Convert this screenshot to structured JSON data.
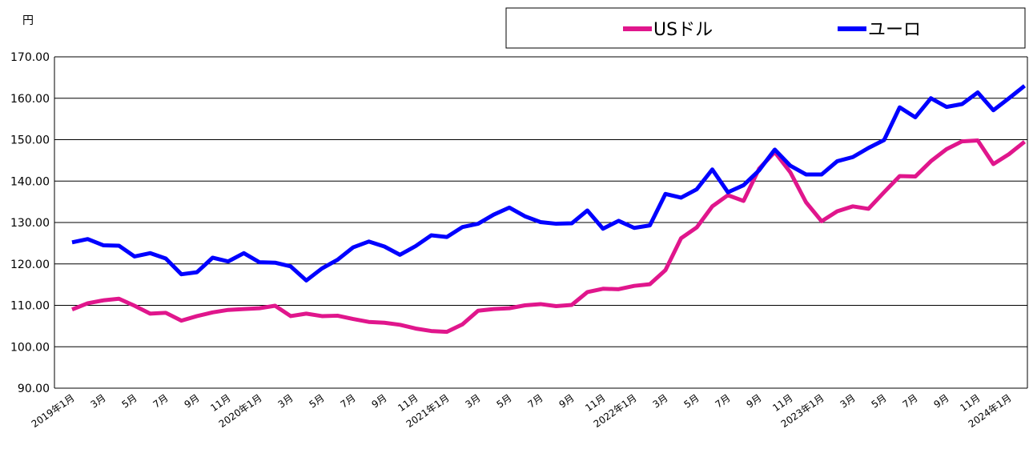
{
  "chart_data": {
    "type": "line",
    "y_label": "円",
    "categories": [
      "2019年1月",
      null,
      "3月",
      null,
      "5月",
      null,
      "7月",
      null,
      "9月",
      null,
      "11月",
      null,
      "2020年1月",
      null,
      "3月",
      null,
      "5月",
      null,
      "7月",
      null,
      "9月",
      null,
      "11月",
      null,
      "2021年1月",
      null,
      "3月",
      null,
      "5月",
      null,
      "7月",
      null,
      "9月",
      null,
      "11月",
      null,
      "2022年1月",
      null,
      "3月",
      null,
      "5月",
      null,
      "7月",
      null,
      "9月",
      null,
      "11月",
      null,
      "2023年1月",
      null,
      "3月",
      null,
      "5月",
      null,
      "7月",
      null,
      "9月",
      null,
      "11月",
      null,
      "2024年1月",
      null
    ],
    "series": [
      {
        "name": "USドル",
        "color": "#e0168c",
        "values": [
          109.0,
          110.5,
          111.2,
          111.6,
          109.9,
          108.0,
          108.2,
          106.3,
          107.4,
          108.3,
          108.9,
          109.1,
          109.3,
          109.9,
          107.4,
          108.0,
          107.4,
          107.5,
          106.7,
          106.0,
          105.8,
          105.3,
          104.4,
          103.8,
          103.6,
          105.4,
          108.7,
          109.1,
          109.3,
          110.0,
          110.3,
          109.8,
          110.1,
          113.2,
          114.0,
          113.9,
          114.7,
          115.1,
          118.5,
          126.2,
          128.8,
          133.9,
          136.6,
          135.2,
          143.0,
          147.0,
          142.1,
          134.9,
          130.3,
          132.7,
          133.9,
          133.3,
          137.3,
          141.2,
          141.1,
          144.8,
          147.7,
          149.6,
          149.8,
          144.1,
          146.5,
          149.5
        ]
      },
      {
        "name": "ユーロ",
        "color": "#0000ff",
        "values": [
          125.2,
          126.0,
          124.5,
          124.4,
          121.8,
          122.6,
          121.3,
          117.5,
          118.0,
          121.5,
          120.6,
          122.6,
          120.4,
          120.3,
          119.4,
          116.0,
          118.9,
          121.0,
          124.0,
          125.4,
          124.2,
          122.2,
          124.3,
          126.9,
          126.5,
          128.9,
          129.7,
          131.9,
          133.6,
          131.5,
          130.1,
          129.7,
          129.8,
          132.9,
          128.5,
          130.4,
          128.7,
          129.3,
          136.9,
          136.0,
          138.0,
          142.8,
          137.3,
          139.0,
          142.6,
          147.6,
          143.7,
          141.6,
          141.6,
          144.8,
          145.8,
          148.0,
          149.9,
          157.8,
          155.4,
          160.0,
          157.9,
          158.6,
          161.4,
          157.1,
          160.0,
          163.0
        ]
      }
    ],
    "ylim": [
      90,
      170
    ],
    "yticks": [
      {
        "value": 90,
        "label": "90.00"
      },
      {
        "value": 100,
        "label": "100.00"
      },
      {
        "value": 110,
        "label": "110.00"
      },
      {
        "value": 120,
        "label": "120.00"
      },
      {
        "value": 130,
        "label": "130.00"
      },
      {
        "value": 140,
        "label": "140.00"
      },
      {
        "value": 150,
        "label": "150.00"
      },
      {
        "value": 160,
        "label": "160.00"
      },
      {
        "value": 170,
        "label": "170.00"
      }
    ],
    "grid": true
  }
}
